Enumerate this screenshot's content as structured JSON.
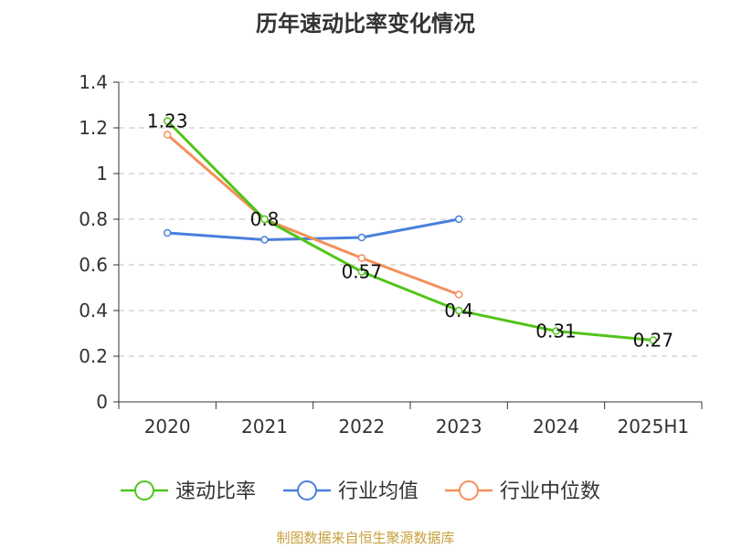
{
  "title": "历年速动比率变化情况",
  "source": "制图数据来自恒生聚源数据库",
  "colors": {
    "source_text": "#c8a03c",
    "axis": "#333333",
    "grid": "#cccccc"
  },
  "legend": {
    "position": "bottom",
    "items": [
      {
        "label": "速动比率",
        "color": "#52c41a"
      },
      {
        "label": "行业均值",
        "color": "#4a7fdc"
      },
      {
        "label": "行业中位数",
        "color": "#f4905a"
      }
    ]
  },
  "chart_data": {
    "type": "line",
    "title": "历年速动比率变化情况",
    "categories": [
      "2020",
      "2021",
      "2022",
      "2023",
      "2024",
      "2025H1"
    ],
    "yticks": [
      "0",
      "0.2",
      "0.4",
      "0.6",
      "0.8",
      "1",
      "1.2",
      "1.4"
    ],
    "ylim": [
      0,
      1.4
    ],
    "grid": true,
    "legend_position": "bottom",
    "series": [
      {
        "name": "速动比率",
        "color": "#52c41a",
        "values": [
          1.23,
          0.8,
          0.57,
          0.4,
          0.31,
          0.27
        ],
        "labels": [
          "1.23",
          "0.8",
          "0.57",
          "0.4",
          "0.31",
          "0.27"
        ]
      },
      {
        "name": "行业均值",
        "color": "#4a7fdc",
        "values": [
          0.74,
          0.71,
          0.72,
          0.8,
          null,
          null
        ]
      },
      {
        "name": "行业中位数",
        "color": "#f4905a",
        "values": [
          1.17,
          0.8,
          0.63,
          0.47,
          null,
          null
        ]
      }
    ]
  }
}
